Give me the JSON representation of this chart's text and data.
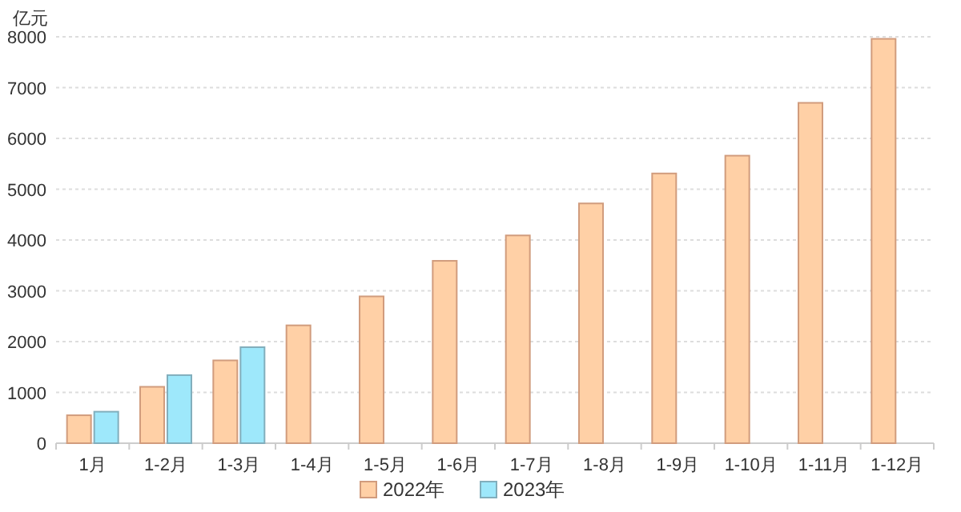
{
  "chart_data": {
    "type": "bar",
    "ylabel": "亿元",
    "categories": [
      "1月",
      "1-2月",
      "1-3月",
      "1-4月",
      "1-5月",
      "1-6月",
      "1-7月",
      "1-8月",
      "1-9月",
      "1-10月",
      "1-11月",
      "1-12月"
    ],
    "series": [
      {
        "name": "2022年",
        "color": "#ffd0a6",
        "values": [
          550,
          1110,
          1630,
          2320,
          2890,
          3590,
          4090,
          4720,
          5310,
          5660,
          6700,
          7960
        ]
      },
      {
        "name": "2023年",
        "color": "#9ee8fb",
        "values": [
          620,
          1340,
          1890,
          null,
          null,
          null,
          null,
          null,
          null,
          null,
          null,
          null
        ]
      }
    ],
    "ylim": [
      0,
      8000
    ],
    "yticks": [
      0,
      1000,
      2000,
      3000,
      4000,
      5000,
      6000,
      7000,
      8000
    ],
    "grid": "y",
    "legend": "bottom"
  }
}
